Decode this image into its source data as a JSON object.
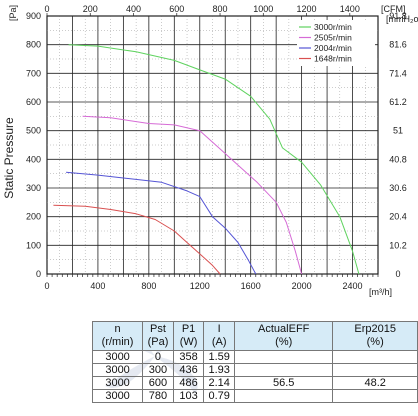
{
  "chart_data": {
    "type": "line",
    "ylabel": "Static Pressure",
    "y_unit_left": "[Pa]",
    "y_unit_right": "[mmH₂o]",
    "x_unit_bottom": "[m³/h]",
    "x_unit_top": "[CFM]",
    "xlim": [
      0,
      2600
    ],
    "ylim": [
      0,
      900
    ],
    "x_ticks": [
      "0",
      "400",
      "800",
      "1200",
      "1600",
      "2000",
      "2400"
    ],
    "y_ticks": [
      "0",
      "100",
      "200",
      "300",
      "400",
      "500",
      "600",
      "700",
      "800",
      "900"
    ],
    "x_top_ticks": [
      "0",
      "200",
      "400",
      "600",
      "800",
      "1000",
      "1200",
      "1400"
    ],
    "y_right_ticks": [
      "0",
      "10.2",
      "20.4",
      "30.6",
      "40.8",
      "51",
      "61.2",
      "71.4",
      "81.6",
      "91.8"
    ],
    "grid": true,
    "legend_position": "top-right",
    "series": [
      {
        "name": "3000r/min",
        "color": "#5fd35f",
        "x": [
          170,
          400,
          700,
          1000,
          1200,
          1400,
          1600,
          1750,
          1850,
          2000,
          2150,
          2300,
          2400,
          2450
        ],
        "y": [
          800,
          795,
          775,
          745,
          712,
          680,
          620,
          540,
          440,
          390,
          310,
          200,
          80,
          0
        ]
      },
      {
        "name": "2505r/min",
        "color": "#d66bd6",
        "x": [
          280,
          500,
          800,
          1000,
          1200,
          1350,
          1500,
          1650,
          1800,
          1880,
          1950,
          2000
        ],
        "y": [
          550,
          545,
          525,
          520,
          500,
          440,
          380,
          320,
          250,
          180,
          80,
          0
        ]
      },
      {
        "name": "2004r/min",
        "color": "#5555d5",
        "x": [
          150,
          400,
          600,
          900,
          1100,
          1200,
          1300,
          1400,
          1500,
          1580,
          1640
        ],
        "y": [
          355,
          345,
          335,
          320,
          290,
          270,
          200,
          160,
          110,
          50,
          0
        ]
      },
      {
        "name": "1648r/min",
        "color": "#d95050",
        "x": [
          50,
          300,
          500,
          700,
          850,
          1000,
          1100,
          1200,
          1300,
          1360
        ],
        "y": [
          240,
          236,
          225,
          210,
          190,
          150,
          110,
          70,
          30,
          0
        ]
      }
    ]
  },
  "table": {
    "headers": [
      {
        "top": "n",
        "bottom": "(r/min)"
      },
      {
        "top": "Pst",
        "bottom": "(Pa)"
      },
      {
        "top": "P1",
        "bottom": "(W)"
      },
      {
        "top": "I",
        "bottom": "(A)"
      },
      {
        "top": "ActualEFF",
        "bottom": "(%)"
      },
      {
        "top": "Erp2015",
        "bottom": "(%)"
      }
    ],
    "rows": [
      [
        "3000",
        "0",
        "358",
        "1.59",
        "",
        ""
      ],
      [
        "3000",
        "300",
        "436",
        "1.93",
        "",
        ""
      ],
      [
        "3000",
        "600",
        "486",
        "2.14",
        "56.5",
        "48.2"
      ],
      [
        "3000",
        "780",
        "103",
        "0.79",
        "",
        ""
      ]
    ]
  }
}
